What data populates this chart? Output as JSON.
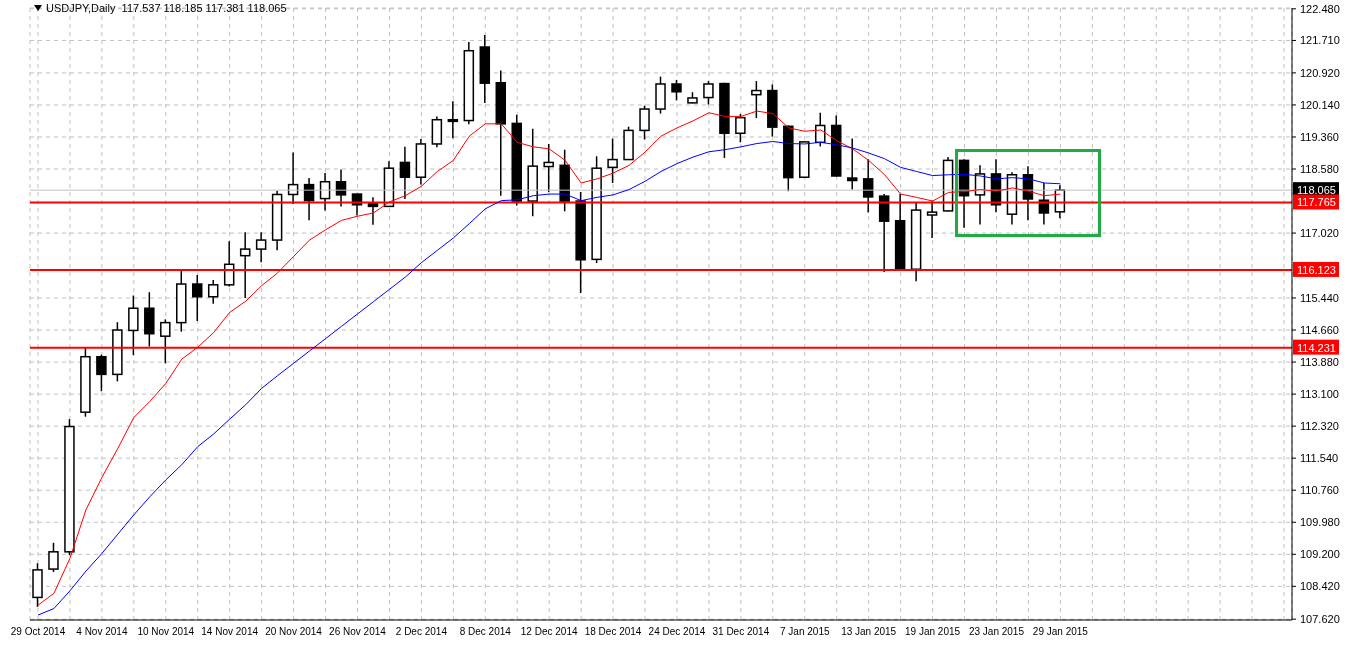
{
  "chart_data": {
    "type": "candlestick",
    "title": "USDJPY,Daily  117.537 118.185 117.381 118.065",
    "categories": [
      "29 Oct 2014",
      null,
      null,
      null,
      "4 Nov 2014",
      null,
      null,
      null,
      "10 Nov 2014",
      null,
      null,
      null,
      "14 Nov 2014",
      null,
      null,
      null,
      "20 Nov 2014",
      null,
      null,
      null,
      "26 Nov 2014",
      null,
      null,
      null,
      "2 Dec 2014",
      null,
      null,
      null,
      "8 Dec 2014",
      null,
      null,
      null,
      "12 Dec 2014",
      null,
      null,
      null,
      "18 Dec 2014",
      null,
      null,
      null,
      "24 Dec 2014",
      null,
      null,
      null,
      "31 Dec 2014",
      null,
      null,
      null,
      "7 Jan 2015",
      null,
      null,
      null,
      "13 Jan 2015",
      null,
      null,
      null,
      "19 Jan 2015",
      null,
      null,
      null,
      "23 Jan 2015",
      null,
      null,
      null,
      "29 Jan 2015"
    ],
    "ohlc": [
      [
        108.15,
        108.98,
        107.92,
        108.82
      ],
      [
        108.84,
        109.48,
        108.77,
        109.26
      ],
      [
        109.26,
        112.49,
        109.18,
        112.31
      ],
      [
        112.66,
        114.22,
        112.55,
        114.01
      ],
      [
        114.01,
        114.06,
        113.17,
        113.58
      ],
      [
        113.58,
        114.85,
        113.41,
        114.66
      ],
      [
        114.65,
        115.5,
        114.05,
        115.19
      ],
      [
        115.19,
        115.58,
        114.26,
        114.57
      ],
      [
        114.51,
        114.92,
        113.85,
        114.84
      ],
      [
        114.84,
        116.12,
        114.62,
        115.78
      ],
      [
        115.78,
        116.0,
        114.88,
        115.47
      ],
      [
        115.47,
        115.88,
        115.3,
        115.76
      ],
      [
        115.76,
        116.82,
        115.72,
        116.26
      ],
      [
        116.47,
        117.04,
        115.44,
        116.63
      ],
      [
        116.63,
        117.04,
        116.31,
        116.85
      ],
      [
        116.85,
        118.05,
        116.6,
        117.96
      ],
      [
        117.96,
        118.98,
        117.73,
        118.2
      ],
      [
        118.2,
        118.36,
        117.33,
        117.81
      ],
      [
        117.86,
        118.48,
        117.57,
        118.27
      ],
      [
        118.27,
        118.57,
        117.67,
        117.95
      ],
      [
        117.97,
        117.98,
        117.45,
        117.71
      ],
      [
        117.73,
        117.89,
        117.22,
        117.67
      ],
      [
        117.67,
        118.77,
        117.66,
        118.6
      ],
      [
        118.74,
        119.12,
        117.85,
        118.38
      ],
      [
        118.38,
        119.31,
        118.2,
        119.19
      ],
      [
        119.19,
        119.86,
        119.11,
        119.78
      ],
      [
        119.78,
        120.23,
        119.33,
        119.74
      ],
      [
        119.76,
        121.67,
        119.67,
        121.46
      ],
      [
        121.55,
        121.84,
        120.19,
        120.67
      ],
      [
        120.68,
        120.98,
        117.93,
        119.68
      ],
      [
        119.69,
        119.9,
        117.69,
        117.8
      ],
      [
        117.8,
        119.56,
        117.43,
        118.65
      ],
      [
        118.64,
        119.19,
        118.02,
        118.74
      ],
      [
        118.67,
        119.05,
        117.55,
        117.8
      ],
      [
        117.8,
        118.02,
        115.56,
        116.37
      ],
      [
        116.38,
        118.89,
        116.29,
        118.6
      ],
      [
        118.62,
        119.32,
        118.24,
        118.81
      ],
      [
        118.81,
        119.61,
        118.8,
        119.52
      ],
      [
        119.52,
        120.12,
        119.3,
        120.04
      ],
      [
        120.04,
        120.83,
        119.93,
        120.65
      ],
      [
        120.65,
        120.75,
        120.25,
        120.46
      ],
      [
        120.19,
        120.45,
        120.18,
        120.31
      ],
      [
        120.32,
        120.72,
        120.15,
        120.65
      ],
      [
        120.66,
        120.68,
        118.85,
        119.45
      ],
      [
        119.45,
        119.92,
        119.23,
        119.83
      ],
      [
        120.39,
        120.72,
        119.82,
        120.49
      ],
      [
        120.49,
        120.64,
        119.37,
        119.6
      ],
      [
        119.62,
        119.64,
        118.04,
        118.37
      ],
      [
        118.38,
        119.25,
        118.37,
        119.24
      ],
      [
        119.23,
        119.95,
        119.13,
        119.64
      ],
      [
        119.64,
        119.88,
        118.4,
        118.41
      ],
      [
        118.36,
        119.32,
        118.08,
        118.3
      ],
      [
        118.34,
        118.82,
        117.52,
        117.9
      ],
      [
        117.92,
        117.97,
        116.07,
        117.31
      ],
      [
        117.32,
        117.97,
        116.12,
        116.14
      ],
      [
        116.14,
        117.75,
        115.85,
        117.58
      ],
      [
        117.46,
        117.81,
        116.9,
        117.53
      ],
      [
        117.56,
        118.87,
        117.55,
        118.79
      ],
      [
        118.79,
        118.82,
        117.15,
        117.93
      ],
      [
        117.95,
        118.67,
        117.23,
        118.46
      ],
      [
        118.46,
        118.82,
        117.53,
        117.71
      ],
      [
        117.48,
        118.5,
        117.23,
        118.44
      ],
      [
        118.44,
        118.65,
        117.33,
        117.85
      ],
      [
        117.82,
        118.24,
        117.23,
        117.51
      ],
      [
        117.537,
        118.185,
        117.381,
        118.065
      ]
    ],
    "series": [
      {
        "type": "line",
        "color": "#ff0000",
        "values": [
          107.96,
          108.25,
          109.1,
          110.28,
          111.07,
          111.78,
          112.53,
          112.92,
          113.36,
          113.95,
          114.24,
          114.6,
          115.09,
          115.36,
          115.74,
          116.05,
          116.45,
          116.85,
          117.1,
          117.33,
          117.43,
          117.51,
          117.78,
          117.93,
          118.16,
          118.52,
          118.79,
          119.38,
          119.68,
          119.68,
          119.23,
          119.12,
          119.07,
          118.79,
          118.24,
          118.34,
          118.48,
          118.67,
          118.99,
          119.38,
          119.58,
          119.75,
          119.95,
          119.86,
          119.86,
          119.99,
          119.93,
          119.58,
          119.5,
          119.53,
          119.27,
          119.07,
          118.79,
          118.44,
          117.97,
          117.89,
          117.8,
          118.01,
          118.03,
          118.08,
          118.04,
          118.12,
          118.04,
          117.93,
          117.97
        ]
      },
      {
        "type": "line",
        "color": "#0000ff",
        "values": [
          107.72,
          107.88,
          108.31,
          108.79,
          109.22,
          109.69,
          110.16,
          110.6,
          111.01,
          111.38,
          111.82,
          112.13,
          112.49,
          112.84,
          113.24,
          113.55,
          113.85,
          114.15,
          114.45,
          114.75,
          115.05,
          115.35,
          115.65,
          115.95,
          116.3,
          116.6,
          116.9,
          117.25,
          117.61,
          117.81,
          117.83,
          117.93,
          117.97,
          117.97,
          117.81,
          117.89,
          117.95,
          118.08,
          118.28,
          118.52,
          118.71,
          118.87,
          119.0,
          119.05,
          119.12,
          119.2,
          119.25,
          119.2,
          119.19,
          119.23,
          119.17,
          119.09,
          118.97,
          118.83,
          118.62,
          118.52,
          118.42,
          118.44,
          118.45,
          118.41,
          118.34,
          118.37,
          118.34,
          118.24,
          118.22
        ]
      }
    ],
    "ylim": [
      107.6,
      122.5
    ],
    "yticks": [
      {
        "value": 107.62,
        "label": "107.620"
      },
      {
        "value": 108.42,
        "label": "108.420"
      },
      {
        "value": 109.2,
        "label": "109.200"
      },
      {
        "value": 109.98,
        "label": "109.980"
      },
      {
        "value": 110.76,
        "label": "110.760"
      },
      {
        "value": 111.54,
        "label": "111.540"
      },
      {
        "value": 112.32,
        "label": "112.320"
      },
      {
        "value": 113.1,
        "label": "113.100"
      },
      {
        "value": 113.88,
        "label": "113.880"
      },
      {
        "value": 114.66,
        "label": "114.660"
      },
      {
        "value": 115.44,
        "label": "115.440"
      },
      {
        "value": 117.02,
        "label": "117.020"
      },
      {
        "value": 118.58,
        "label": "118.580"
      },
      {
        "value": 119.36,
        "label": "119.360"
      },
      {
        "value": 120.14,
        "label": "120.140"
      },
      {
        "value": 120.92,
        "label": "120.920"
      },
      {
        "value": 121.71,
        "label": "121.710"
      },
      {
        "value": 122.48,
        "label": "122.480"
      }
    ],
    "ref_lines": [
      {
        "axis": "y",
        "value": 118.065,
        "label": "118.065",
        "color": "#c0c0c0"
      },
      {
        "axis": "y",
        "value": 117.765,
        "label": "117.765",
        "color": "#ff0000"
      },
      {
        "axis": "y",
        "value": 116.123,
        "label": "116.123",
        "color": "#ff0000"
      },
      {
        "axis": "y",
        "value": 114.231,
        "label": "114.231",
        "color": "#ff0000"
      }
    ],
    "grid": true,
    "marker": "none",
    "line_style": "solid"
  }
}
